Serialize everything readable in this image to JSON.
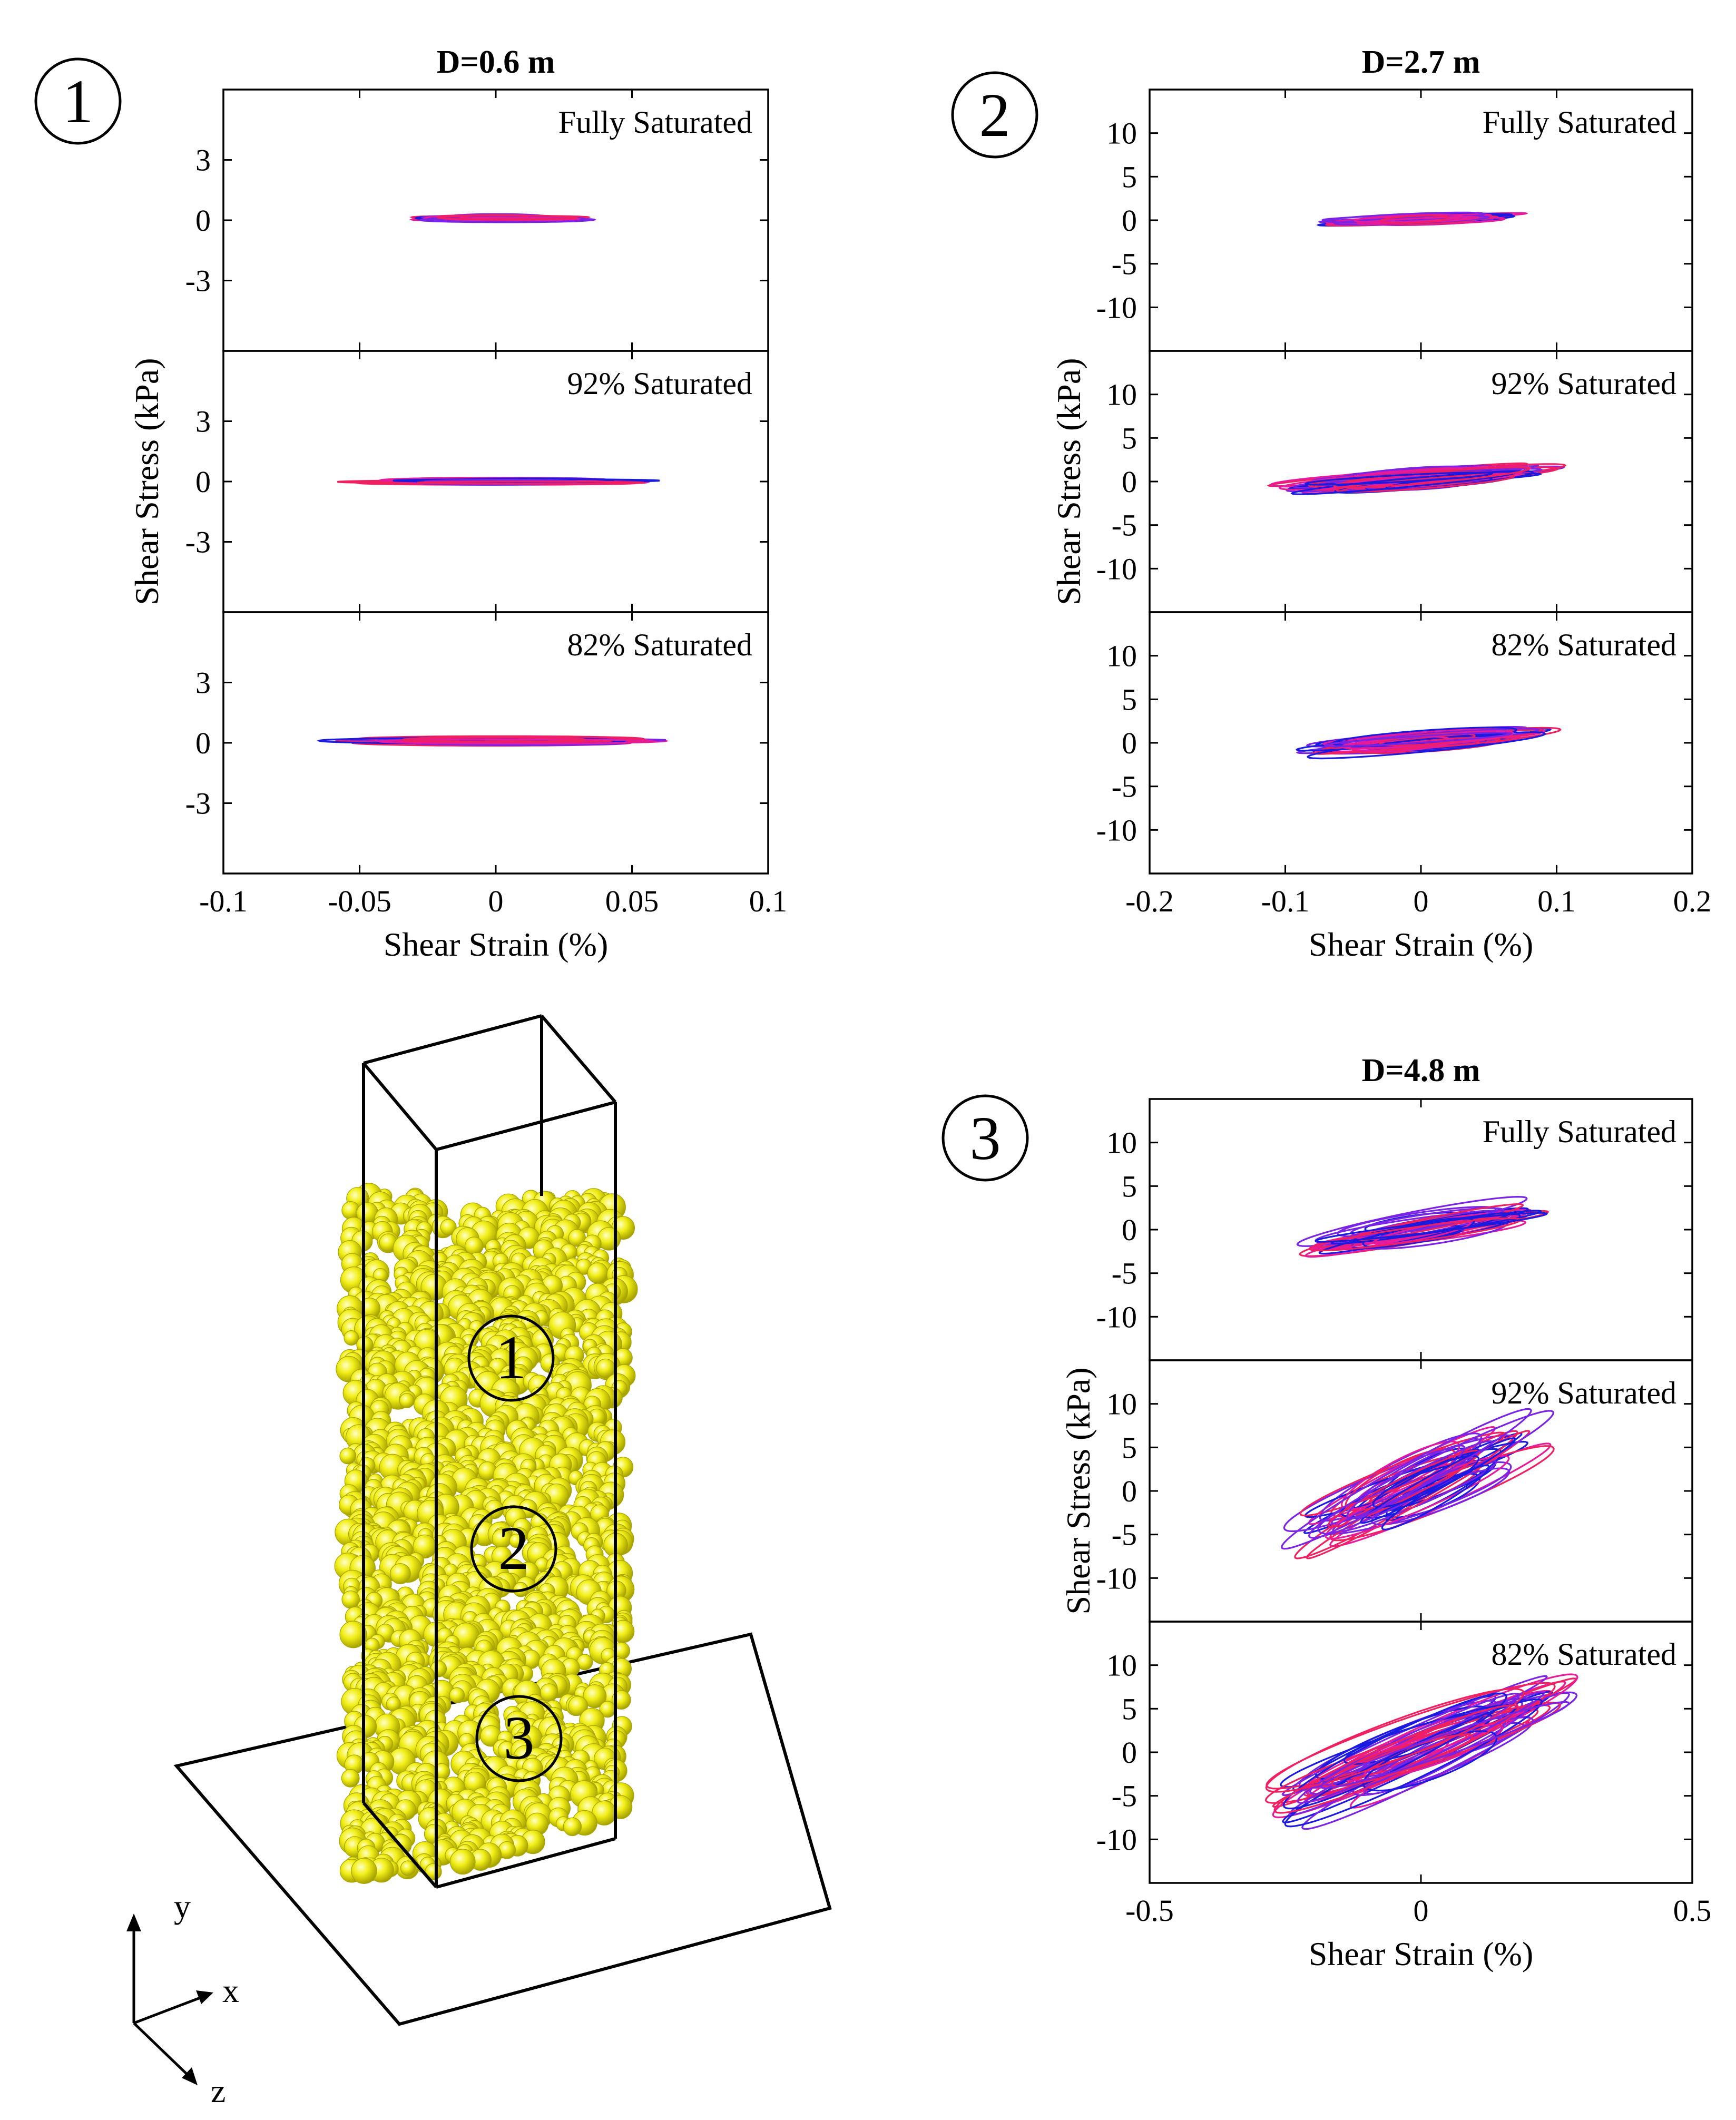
{
  "colors": {
    "blue": "#1a1ae0",
    "purple": "#7a22e6",
    "magenta": "#e61a9a",
    "red": "#f02060",
    "particle": "#f2ef18",
    "particle_edge": "#a7a300"
  },
  "badges": [
    "1",
    "2",
    "3"
  ],
  "axes_labels": {
    "ylabel": "Shear Stress (kPa)",
    "xlabel": "Shear Strain (%)"
  },
  "chart_data": [
    {
      "id": "D06",
      "type": "line",
      "title": "D=0.6 m",
      "badge": "1",
      "xlabel": "Shear Strain (%)",
      "ylabel": "Shear Stress (kPa)",
      "xlim": [
        -0.1,
        0.1
      ],
      "xticks": [
        -0.1,
        -0.05,
        0,
        0.05,
        0.1
      ],
      "xtick_labels": [
        "-0.1",
        "-0.05",
        "0",
        "0.05",
        "0.1"
      ],
      "ylim": [
        -6.5,
        6.5
      ],
      "yticks": [
        3,
        0,
        -3
      ],
      "ytick_labels": [
        "3",
        "0",
        "-3"
      ],
      "grid": false,
      "subplots": [
        {
          "label": "Fully Saturated",
          "center": [
            0.002,
            0.1
          ],
          "x_extent": 0.033,
          "y_extent": 0.55,
          "slope": 0.0,
          "loops": 22
        },
        {
          "label": "92% Saturated",
          "center": [
            0.005,
            0.0
          ],
          "x_extent": 0.055,
          "y_extent": 0.5,
          "slope": 0.0,
          "loops": 24
        },
        {
          "label": "82% Saturated",
          "center": [
            0.0,
            0.1
          ],
          "x_extent": 0.06,
          "y_extent": 0.6,
          "slope": 0.0,
          "loops": 26
        }
      ]
    },
    {
      "id": "D27",
      "type": "line",
      "title": "D=2.7 m",
      "badge": "2",
      "xlabel": "Shear Strain (%)",
      "ylabel": "Shear Stress (kPa)",
      "xlim": [
        -0.2,
        0.2
      ],
      "xticks": [
        -0.2,
        -0.1,
        0,
        0.1,
        0.2
      ],
      "xtick_labels": [
        "-0.2",
        "-0.1",
        "0",
        "0.1",
        "0.2"
      ],
      "ylim": [
        -15,
        15
      ],
      "yticks": [
        10,
        5,
        0,
        -5,
        -10
      ],
      "ytick_labels": [
        "10",
        "5",
        "0",
        "-5",
        "-10"
      ],
      "grid": false,
      "subplots": [
        {
          "label": "Fully Saturated",
          "center": [
            0.0,
            0.1
          ],
          "x_extent": 0.07,
          "y_extent": 1.6,
          "slope": 6,
          "loops": 26
        },
        {
          "label": "92% Saturated",
          "center": [
            0.0,
            0.3
          ],
          "x_extent": 0.1,
          "y_extent": 3.0,
          "slope": 12,
          "loops": 32
        },
        {
          "label": "82% Saturated",
          "center": [
            0.0,
            0.2
          ],
          "x_extent": 0.09,
          "y_extent": 3.2,
          "slope": 12,
          "loops": 32
        }
      ]
    },
    {
      "id": "D48",
      "type": "line",
      "title": "D=4.8 m",
      "badge": "3",
      "xlabel": "Shear Strain (%)",
      "ylabel": "Shear Stress (kPa)",
      "xlim": [
        -0.5,
        0.5
      ],
      "xticks": [
        -0.5,
        0,
        0.5
      ],
      "xtick_labels": [
        "-0.5",
        "0",
        "0.5"
      ],
      "ylim": [
        -15,
        15
      ],
      "yticks": [
        10,
        5,
        0,
        -5,
        -10
      ],
      "ytick_labels": [
        "10",
        "5",
        "0",
        "-5",
        "-10"
      ],
      "grid": false,
      "subplots": [
        {
          "label": "Fully Saturated",
          "center": [
            0.0,
            0.2
          ],
          "x_extent": 0.22,
          "y_extent": 4.5,
          "slope": 10,
          "loops": 30
        },
        {
          "label": "92% Saturated",
          "center": [
            0.0,
            0.5
          ],
          "x_extent": 0.23,
          "y_extent": 8.5,
          "slope": 28,
          "loops": 36
        },
        {
          "label": "82% Saturated",
          "center": [
            0.0,
            0.3
          ],
          "x_extent": 0.28,
          "y_extent": 9.5,
          "slope": 24,
          "loops": 38
        }
      ]
    }
  ],
  "column_3d": {
    "zone_labels": [
      "1",
      "2",
      "3"
    ],
    "axes": {
      "x": "x",
      "y": "y",
      "z": "z"
    }
  }
}
